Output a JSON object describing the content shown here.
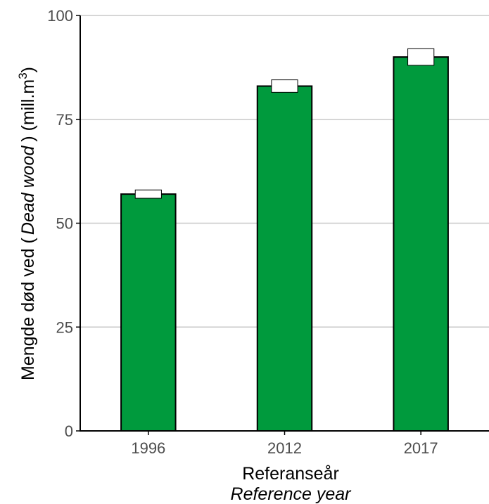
{
  "chart_data": {
    "type": "bar",
    "categories": [
      "1996",
      "2012",
      "2017"
    ],
    "values": [
      57,
      83,
      90
    ],
    "error_ranges": [
      {
        "low": 56,
        "high": 58
      },
      {
        "low": 81.5,
        "high": 84.5
      },
      {
        "low": 88,
        "high": 92
      }
    ],
    "ylim": [
      0,
      100
    ],
    "yticks": [
      0,
      25,
      50,
      75,
      100
    ],
    "ylabel": {
      "part1": "Mengde død ved (",
      "italic": "Dead wood",
      "part2": ") (mill.m",
      "superscript": "3",
      "part3": ")"
    },
    "xlabel": {
      "line1": "Referanseår",
      "line2": "Reference year"
    },
    "colors": {
      "bar_fill": "#009a3d",
      "bar_stroke": "#000000",
      "grid": "#c8c8c8",
      "error_box_fill": "#ffffff"
    },
    "grid": true
  }
}
